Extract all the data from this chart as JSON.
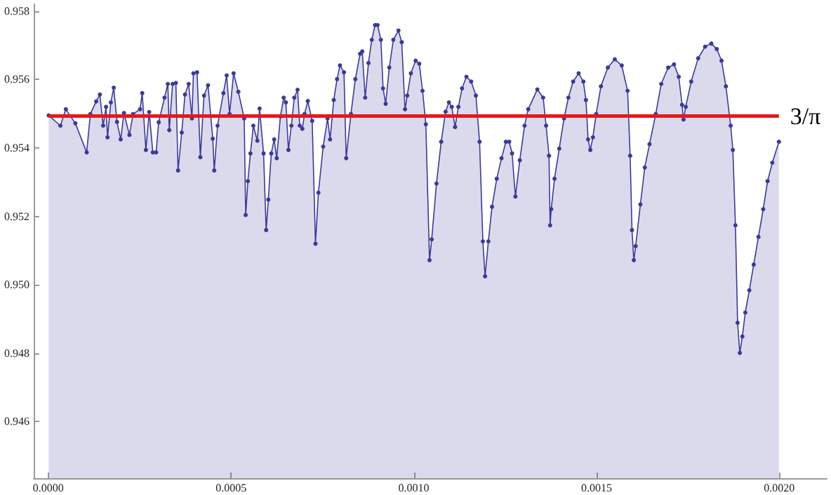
{
  "chart_data": {
    "type": "area",
    "marker": "circle",
    "line_style": "solid",
    "xlim": [
      -4e-05,
      0.00213
    ],
    "ylim": [
      0.94435,
      0.9582
    ],
    "xticks": [
      {
        "value": 0,
        "label": "0.0000"
      },
      {
        "value": 0.0005,
        "label": "0.0005"
      },
      {
        "value": 0.001,
        "label": "0.0010"
      },
      {
        "value": 0.0015,
        "label": "0.0015"
      },
      {
        "value": 0.002,
        "label": "0.0020"
      }
    ],
    "yticks": [
      0.946,
      0.948,
      {
        "value": 0.95,
        "label": "0.950"
      },
      0.952,
      0.954,
      0.956,
      0.958
    ],
    "ref_lines": [
      {
        "axis": "y",
        "value": 0.95493,
        "label": "3/π",
        "color": "#e41a1c"
      }
    ],
    "series": [
      {
        "color": "#3a3a9c",
        "x": [
          1e-06,
          3.3e-05,
          4.8e-05,
          7.4e-05,
          0.000105,
          0.000115,
          0.000131,
          0.000141,
          0.00015,
          0.000158,
          0.000162,
          0.000171,
          0.000179,
          0.000188,
          0.000198,
          0.000207,
          0.000222,
          0.000232,
          0.000251,
          0.000257,
          0.000267,
          0.000276,
          0.000286,
          0.000295,
          0.000302,
          0.000318,
          0.000327,
          0.000331,
          0.00034,
          0.000349,
          0.000355,
          0.000365,
          0.000374,
          0.000384,
          0.000393,
          0.000397,
          0.000407,
          0.000416,
          0.000426,
          0.000437,
          0.00045,
          0.000454,
          0.000463,
          0.000479,
          0.000488,
          0.000496,
          0.000507,
          0.00052,
          0.000536,
          0.00054,
          0.000546,
          0.000553,
          0.000561,
          0.000572,
          0.000578,
          0.000589,
          0.000596,
          0.000602,
          0.00061,
          0.000618,
          0.000625,
          0.000635,
          0.000644,
          0.00065,
          0.000657,
          0.000665,
          0.000673,
          0.000682,
          0.000688,
          0.000695,
          0.000701,
          0.00071,
          0.000722,
          0.000731,
          0.000739,
          0.000752,
          0.000764,
          0.000771,
          0.000781,
          0.00079,
          0.000798,
          0.000809,
          0.000815,
          0.000828,
          0.00084,
          0.000853,
          0.000859,
          0.000867,
          0.000876,
          0.000885,
          0.000894,
          0.000901,
          0.00091,
          0.000916,
          0.000923,
          0.000933,
          0.000944,
          0.000958,
          0.000967,
          0.000976,
          0.000982,
          0.000992,
          0.001005,
          0.001015,
          0.001024,
          0.001033,
          0.001043,
          0.001049,
          0.001062,
          0.001075,
          0.001087,
          0.001096,
          0.001104,
          0.001113,
          0.001122,
          0.001132,
          0.001144,
          0.001157,
          0.00117,
          0.00118,
          0.001189,
          0.001195,
          0.001204,
          0.001214,
          0.001227,
          0.00124,
          0.001252,
          0.001261,
          0.001269,
          0.001278,
          0.00129,
          0.001303,
          0.001313,
          0.001338,
          0.001354,
          0.001362,
          0.00137,
          0.001373,
          0.001376,
          0.001385,
          0.001398,
          0.001411,
          0.001423,
          0.001436,
          0.001451,
          0.001464,
          0.001471,
          0.001477,
          0.001483,
          0.00149,
          0.001499,
          0.001512,
          0.001531,
          0.00155,
          0.001569,
          0.001585,
          0.001592,
          0.001597,
          0.001602,
          0.001607,
          0.00162,
          0.001632,
          0.001645,
          0.001662,
          0.001677,
          0.001696,
          0.001712,
          0.001725,
          0.001734,
          0.001738,
          0.001744,
          0.001759,
          0.001778,
          0.001797,
          0.001814,
          0.001829,
          0.001842,
          0.001854,
          0.001867,
          0.001873,
          0.00188,
          0.001886,
          0.001892,
          0.001899,
          0.001907,
          0.001918,
          0.00193,
          0.001943,
          0.001956,
          0.001968,
          0.001981,
          0.001999
        ],
        "values": [
          0.95495,
          0.95465,
          0.95513,
          0.95472,
          0.95387,
          0.95499,
          0.95536,
          0.95556,
          0.95465,
          0.9552,
          0.95431,
          0.95533,
          0.95576,
          0.95476,
          0.95425,
          0.95502,
          0.95438,
          0.95499,
          0.95513,
          0.9556,
          0.95394,
          0.95505,
          0.95387,
          0.95387,
          0.95475,
          0.95547,
          0.95587,
          0.95452,
          0.95587,
          0.9559,
          0.95334,
          0.95445,
          0.95556,
          0.95587,
          0.95486,
          0.95618,
          0.95621,
          0.95373,
          0.95553,
          0.95583,
          0.95427,
          0.95334,
          0.95465,
          0.9556,
          0.95612,
          0.95499,
          0.95618,
          0.95564,
          0.95486,
          0.95204,
          0.95303,
          0.95384,
          0.95465,
          0.95421,
          0.95515,
          0.95384,
          0.9516,
          0.95249,
          0.95384,
          0.95425,
          0.9537,
          0.95492,
          0.95547,
          0.95533,
          0.95394,
          0.95465,
          0.95547,
          0.9557,
          0.95465,
          0.95456,
          0.95499,
          0.95537,
          0.95479,
          0.9512,
          0.95269,
          0.95404,
          0.95486,
          0.95425,
          0.9554,
          0.95601,
          0.95641,
          0.95621,
          0.9537,
          0.95499,
          0.95601,
          0.95675,
          0.95682,
          0.95547,
          0.95648,
          0.95716,
          0.95759,
          0.95759,
          0.95716,
          0.95574,
          0.95529,
          0.95635,
          0.95716,
          0.95743,
          0.95709,
          0.95513,
          0.95553,
          0.95618,
          0.95655,
          0.95646,
          0.95567,
          0.95469,
          0.95072,
          0.95133,
          0.95296,
          0.95418,
          0.95506,
          0.95533,
          0.9552,
          0.95461,
          0.9552,
          0.95574,
          0.95608,
          0.95594,
          0.95553,
          0.95418,
          0.95127,
          0.95025,
          0.95127,
          0.95228,
          0.9531,
          0.9537,
          0.95418,
          0.95418,
          0.95384,
          0.95258,
          0.95364,
          0.95465,
          0.95513,
          0.95571,
          0.95547,
          0.95465,
          0.95377,
          0.95174,
          0.95221,
          0.9531,
          0.95398,
          0.95486,
          0.95547,
          0.95594,
          0.95618,
          0.95594,
          0.9554,
          0.95425,
          0.95394,
          0.95431,
          0.95499,
          0.9558,
          0.95635,
          0.95659,
          0.95641,
          0.95567,
          0.95377,
          0.9516,
          0.95072,
          0.95113,
          0.95235,
          0.95343,
          0.95411,
          0.95499,
          0.95587,
          0.95635,
          0.95644,
          0.95608,
          0.95526,
          0.95483,
          0.9552,
          0.95594,
          0.95662,
          0.95696,
          0.95705,
          0.95689,
          0.95655,
          0.9558,
          0.95465,
          0.95394,
          0.95174,
          0.94889,
          0.94801,
          0.94849,
          0.94919,
          0.94984,
          0.95059,
          0.9514,
          0.95221,
          0.95303,
          0.95357,
          0.95418
        ]
      }
    ]
  }
}
